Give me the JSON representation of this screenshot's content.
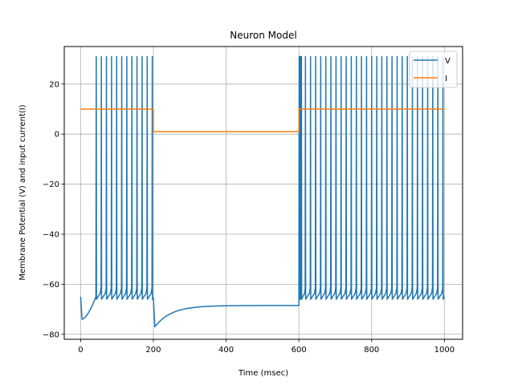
{
  "chart_data": {
    "type": "line",
    "title": "Neuron Model",
    "xlabel": "Time (msec)",
    "ylabel": "Membrane Potential (V) and input current(I)",
    "xlim": [
      -45,
      1050
    ],
    "ylim": [
      -82,
      35
    ],
    "xticks": [
      0,
      200,
      400,
      600,
      800,
      1000
    ],
    "yticks": [
      -80,
      -60,
      -40,
      -20,
      0,
      20
    ],
    "grid": true,
    "legend": "top-right",
    "series": [
      {
        "name": "V",
        "color": "#1f77b4",
        "segments": [
          {
            "pattern": "spiking",
            "start": 0,
            "end": 200,
            "initial": -65,
            "initial_min": {
              "t": 4,
              "v": -74
            },
            "first_spike_time": 43,
            "spike_times": [
              43,
              57,
              71,
              85,
              99,
              113,
              127,
              141,
              155,
              169,
              183,
              197
            ],
            "peak": 31,
            "trough": -65.5
          },
          {
            "pattern": "recovery",
            "start": 200,
            "end": 600,
            "min": {
              "t": 204,
              "v": -77
            },
            "steady": -68.5
          },
          {
            "pattern": "spiking",
            "start": 600,
            "end": 1000,
            "spike_times": [
              601,
              603,
              605,
              607,
              618,
              632,
              646,
              660,
              674,
              688,
              702,
              716,
              730,
              744,
              758,
              772,
              786,
              800,
              814,
              828,
              842,
              856,
              870,
              884,
              898,
              912,
              926,
              940,
              954,
              968,
              982,
              996
            ],
            "peak": 31,
            "trough": -65.5,
            "final": -65
          }
        ]
      },
      {
        "name": "I",
        "color": "#ff7f0e",
        "x": [
          0,
          200,
          200,
          600,
          600,
          1000
        ],
        "y": [
          10,
          10,
          1,
          1,
          10,
          10
        ]
      }
    ]
  }
}
